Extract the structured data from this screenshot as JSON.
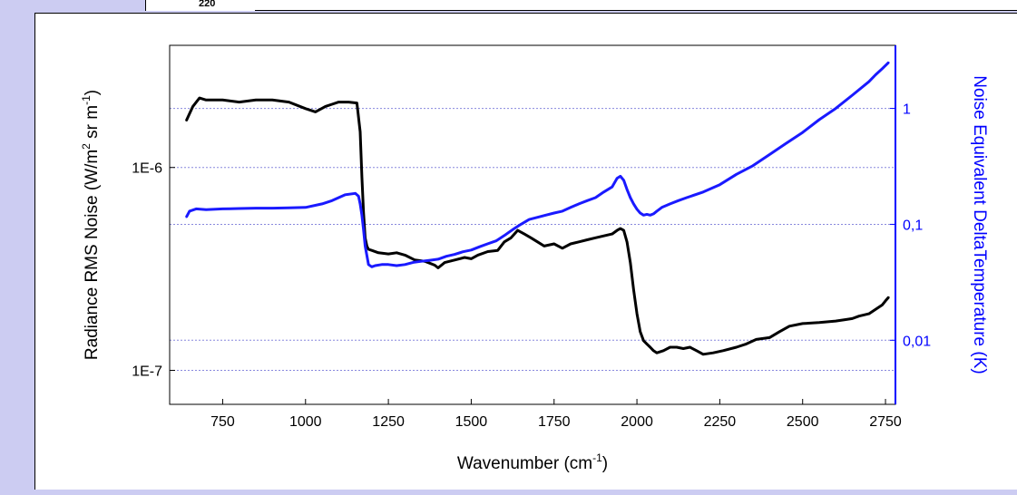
{
  "top_strip": {
    "visible_tick": "220"
  },
  "chart_data": {
    "type": "line",
    "xlabel": "Wavenumber (cm",
    "xlabel_sup": "-1",
    "xlabel_end": ")",
    "ylabel_left": "Radiance RMS Noise (W/m",
    "ylabel_left_sup1": "2",
    "ylabel_left_mid": " sr m",
    "ylabel_left_sup2": "-1",
    "ylabel_left_end": ")",
    "ylabel_right": "Noise Equivalent DeltaTemperature (K)",
    "x_ticks": [
      "750",
      "1000",
      "1250",
      "1500",
      "1750",
      "2000",
      "2250",
      "2500",
      "2750"
    ],
    "xlim": [
      590,
      2780
    ],
    "y_left_scale": "log",
    "y_left_lim": [
      6.8e-08,
      4e-06
    ],
    "y_left_ticks": [
      "1E-7",
      "1E-6"
    ],
    "y_right_scale": "log",
    "y_right_lim": [
      0.0028,
      3.5
    ],
    "y_right_ticks": [
      "0,01",
      "0,1",
      "1"
    ],
    "gridlines": "dotted horizontal",
    "colors": {
      "left_axis": "#000000",
      "right_axis": "#0000ff",
      "grid": "#8888dd",
      "radiance": "#000000",
      "ne_dt": "#1a1aff"
    },
    "series": [
      {
        "axis": "left",
        "color": "#000000",
        "x": [
          640,
          660,
          680,
          700,
          750,
          800,
          850,
          900,
          950,
          1000,
          1030,
          1060,
          1080,
          1100,
          1130,
          1155,
          1165,
          1170,
          1175,
          1180,
          1185,
          1190,
          1200,
          1220,
          1250,
          1275,
          1300,
          1330,
          1360,
          1390,
          1400,
          1420,
          1450,
          1480,
          1500,
          1520,
          1550,
          1580,
          1600,
          1620,
          1640,
          1660,
          1680,
          1700,
          1720,
          1750,
          1775,
          1800,
          1825,
          1850,
          1875,
          1900,
          1925,
          1940,
          1950,
          1960,
          1970,
          1980,
          1990,
          2000,
          2010,
          2020,
          2030,
          2040,
          2050,
          2060,
          2080,
          2100,
          2120,
          2140,
          2160,
          2180,
          2200,
          2230,
          2260,
          2300,
          2330,
          2360,
          2400,
          2430,
          2460,
          2500,
          2550,
          2600,
          2630,
          2650,
          2670,
          2700,
          2720,
          2740,
          2750,
          2760
        ],
        "y": [
          1.7e-06,
          2e-06,
          2.2e-06,
          2.15e-06,
          2.15e-06,
          2.1e-06,
          2.15e-06,
          2.15e-06,
          2.1e-06,
          1.95e-06,
          1.88e-06,
          2e-06,
          2.05e-06,
          2.1e-06,
          2.1e-06,
          2.08e-06,
          1.5e-06,
          9e-07,
          6e-07,
          4.5e-07,
          4.1e-07,
          3.95e-07,
          3.9e-07,
          3.8e-07,
          3.75e-07,
          3.8e-07,
          3.7e-07,
          3.5e-07,
          3.45e-07,
          3.3e-07,
          3.2e-07,
          3.4e-07,
          3.5e-07,
          3.6e-07,
          3.55e-07,
          3.7e-07,
          3.85e-07,
          3.9e-07,
          4.3e-07,
          4.5e-07,
          4.9e-07,
          4.7e-07,
          4.5e-07,
          4.3e-07,
          4.1e-07,
          4.2e-07,
          4e-07,
          4.2e-07,
          4.3e-07,
          4.4e-07,
          4.5e-07,
          4.6e-07,
          4.7e-07,
          4.9e-07,
          5e-07,
          4.9e-07,
          4.3e-07,
          3.4e-07,
          2.5e-07,
          1.9e-07,
          1.55e-07,
          1.4e-07,
          1.35e-07,
          1.3e-07,
          1.25e-07,
          1.22e-07,
          1.25e-07,
          1.3e-07,
          1.3e-07,
          1.28e-07,
          1.3e-07,
          1.25e-07,
          1.2e-07,
          1.22e-07,
          1.25e-07,
          1.3e-07,
          1.35e-07,
          1.42e-07,
          1.45e-07,
          1.55e-07,
          1.65e-07,
          1.7e-07,
          1.72e-07,
          1.75e-07,
          1.78e-07,
          1.8e-07,
          1.85e-07,
          1.9e-07,
          2e-07,
          2.1e-07,
          2.2e-07,
          2.3e-07
        ]
      },
      {
        "axis": "right",
        "color": "#1a1aff",
        "x": [
          640,
          650,
          670,
          700,
          750,
          800,
          850,
          900,
          950,
          1000,
          1050,
          1080,
          1100,
          1120,
          1150,
          1160,
          1165,
          1170,
          1175,
          1180,
          1190,
          1200,
          1210,
          1230,
          1250,
          1275,
          1300,
          1325,
          1350,
          1375,
          1400,
          1425,
          1450,
          1475,
          1500,
          1525,
          1550,
          1575,
          1600,
          1625,
          1650,
          1675,
          1700,
          1725,
          1750,
          1775,
          1800,
          1825,
          1850,
          1875,
          1900,
          1925,
          1940,
          1950,
          1960,
          1970,
          1980,
          1990,
          2000,
          2010,
          2020,
          2030,
          2040,
          2050,
          2060,
          2075,
          2100,
          2125,
          2150,
          2200,
          2250,
          2300,
          2350,
          2400,
          2450,
          2500,
          2550,
          2600,
          2650,
          2700,
          2720,
          2740,
          2760
        ],
        "y": [
          0.115,
          0.13,
          0.136,
          0.134,
          0.136,
          0.137,
          0.138,
          0.138,
          0.139,
          0.14,
          0.15,
          0.16,
          0.17,
          0.18,
          0.185,
          0.175,
          0.15,
          0.12,
          0.09,
          0.065,
          0.045,
          0.043,
          0.044,
          0.045,
          0.045,
          0.044,
          0.045,
          0.047,
          0.048,
          0.049,
          0.05,
          0.053,
          0.055,
          0.058,
          0.06,
          0.064,
          0.068,
          0.072,
          0.08,
          0.09,
          0.1,
          0.11,
          0.115,
          0.12,
          0.125,
          0.13,
          0.14,
          0.15,
          0.16,
          0.17,
          0.19,
          0.21,
          0.25,
          0.26,
          0.24,
          0.2,
          0.17,
          0.15,
          0.135,
          0.125,
          0.12,
          0.122,
          0.12,
          0.123,
          0.13,
          0.14,
          0.15,
          0.16,
          0.17,
          0.19,
          0.22,
          0.27,
          0.32,
          0.4,
          0.5,
          0.62,
          0.8,
          1.0,
          1.3,
          1.7,
          1.95,
          2.2,
          2.5
        ]
      }
    ]
  }
}
